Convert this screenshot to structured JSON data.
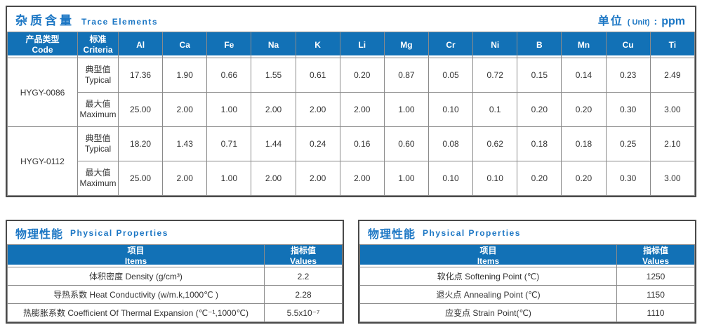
{
  "trace_table": {
    "title_zh": "杂质含量",
    "title_en": "Trace Elements",
    "unit_zh": "单位",
    "unit_paren": "( Unit)",
    "unit_colon": ":",
    "unit_value": "ppm",
    "col_code_zh": "产品类型",
    "col_code_en": "Code",
    "col_criteria_zh": "标准",
    "col_criteria_en": "Criteria",
    "elements": [
      "Al",
      "Ca",
      "Fe",
      "Na",
      "K",
      "Li",
      "Mg",
      "Cr",
      "Ni",
      "B",
      "Mn",
      "Cu",
      "Ti"
    ],
    "groups": [
      {
        "code": "HYGY-0086",
        "rows": [
          {
            "criteria_zh": "典型值",
            "criteria_en": "Typical",
            "values": [
              "17.36",
              "1.90",
              "0.66",
              "1.55",
              "0.61",
              "0.20",
              "0.87",
              "0.05",
              "0.72",
              "0.15",
              "0.14",
              "0.23",
              "2.49"
            ]
          },
          {
            "criteria_zh": "最大值",
            "criteria_en": "Maximum",
            "values": [
              "25.00",
              "2.00",
              "1.00",
              "2.00",
              "2.00",
              "2.00",
              "1.00",
              "0.10",
              "0.1",
              "0.20",
              "0.20",
              "0.30",
              "3.00"
            ]
          }
        ]
      },
      {
        "code": "HYGY-0112",
        "rows": [
          {
            "criteria_zh": "典型值",
            "criteria_en": "Typical",
            "values": [
              "18.20",
              "1.43",
              "0.71",
              "1.44",
              "0.24",
              "0.16",
              "0.60",
              "0.08",
              "0.62",
              "0.18",
              "0.18",
              "0.25",
              "2.10"
            ]
          },
          {
            "criteria_zh": "最大值",
            "criteria_en": "Maximum",
            "values": [
              "25.00",
              "2.00",
              "1.00",
              "2.00",
              "2.00",
              "2.00",
              "1.00",
              "0.10",
              "0.10",
              "0.20",
              "0.20",
              "0.30",
              "3.00"
            ]
          }
        ]
      }
    ]
  },
  "physical_tables": [
    {
      "title_zh": "物理性能",
      "title_en": "Physical Properties",
      "col_items_zh": "项目",
      "col_items_en": "Items",
      "col_values_zh": "指标值",
      "col_values_en": "Values",
      "rows": [
        {
          "item": "体积密度 Density (g/cm³)",
          "value": "2.2"
        },
        {
          "item": "导热系数 Heat Conductivity (w/m.k,1000℃ )",
          "value": "2.28"
        },
        {
          "item": "热膨胀系数 Coefficient Of Thermal Expansion (℃⁻¹,1000℃)",
          "value": "5.5x10⁻⁷"
        }
      ]
    },
    {
      "title_zh": "物理性能",
      "title_en": "Physical Properties",
      "col_items_zh": "项目",
      "col_items_en": "Items",
      "col_values_zh": "指标值",
      "col_values_en": "Values",
      "rows": [
        {
          "item": "软化点 Softening Point (℃)",
          "value": "1250"
        },
        {
          "item": "退火点 Annealing Point (℃)",
          "value": "1150"
        },
        {
          "item": "应变点 Strain Point(℃)",
          "value": "1110"
        }
      ]
    }
  ],
  "colors": {
    "header_blue": "#1271b6",
    "title_blue": "#1b76c4",
    "border_dark": "#4a4a4a",
    "grid_gray": "#8a8a8a"
  }
}
